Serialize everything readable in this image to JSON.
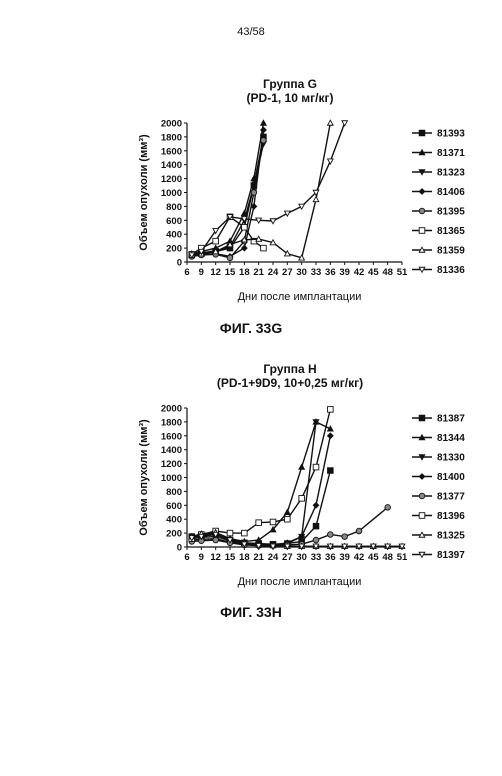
{
  "page": {
    "number": "43/58"
  },
  "figures": [
    {
      "caption": "ФИГ. 33G"
    },
    {
      "caption": "ФИГ. 33H"
    }
  ],
  "chart_data": [
    {
      "type": "line",
      "title": "Группа G",
      "subtitle": "(PD-1, 10 мг/кг)",
      "xlabel": "Дни после имплантации",
      "ylabel": "Объем опухоли (мм³)",
      "xlim": [
        6,
        51
      ],
      "ylim": [
        0,
        2000
      ],
      "x_ticks": [
        6,
        9,
        12,
        15,
        18,
        21,
        24,
        27,
        30,
        33,
        36,
        39,
        42,
        45,
        48,
        51
      ],
      "y_ticks": [
        0,
        200,
        400,
        600,
        800,
        1000,
        1200,
        1400,
        1600,
        1800,
        2000
      ],
      "legend_position": "right",
      "series": [
        {
          "name": "81393",
          "marker": "square-filled",
          "x": [
            7,
            9,
            12,
            15,
            18,
            20,
            22
          ],
          "y": [
            100,
            120,
            150,
            200,
            500,
            1100,
            1800
          ]
        },
        {
          "name": "81371",
          "marker": "triangle-up-filled",
          "x": [
            7,
            9,
            12,
            15,
            18,
            20,
            22
          ],
          "y": [
            120,
            150,
            200,
            300,
            700,
            1200,
            2000
          ]
        },
        {
          "name": "81323",
          "marker": "triangle-down-filled",
          "x": [
            7,
            9,
            12,
            15,
            18,
            20,
            22
          ],
          "y": [
            100,
            130,
            160,
            220,
            600,
            1100,
            1700
          ]
        },
        {
          "name": "81406",
          "marker": "diamond-filled",
          "x": [
            7,
            9,
            12,
            15,
            18,
            20,
            22
          ],
          "y": [
            90,
            110,
            120,
            80,
            200,
            800,
            1900
          ]
        },
        {
          "name": "81395",
          "marker": "circle-filled",
          "x": [
            7,
            9,
            12,
            15,
            18,
            20,
            22
          ],
          "y": [
            80,
            100,
            110,
            60,
            300,
            1000,
            1750
          ]
        },
        {
          "name": "81365",
          "marker": "square-open",
          "x": [
            7,
            9,
            12,
            15,
            18,
            20,
            22
          ],
          "y": [
            110,
            200,
            300,
            650,
            500,
            300,
            200
          ]
        },
        {
          "name": "81359",
          "marker": "triangle-up-open",
          "x": [
            7,
            9,
            12,
            15,
            18,
            21,
            24,
            27,
            30,
            33,
            36
          ],
          "y": [
            100,
            120,
            150,
            250,
            320,
            330,
            280,
            120,
            60,
            900,
            2000
          ]
        },
        {
          "name": "81336",
          "marker": "triangle-down-open",
          "x": [
            7,
            9,
            12,
            15,
            18,
            21,
            24,
            27,
            30,
            33,
            36,
            39
          ],
          "y": [
            100,
            150,
            450,
            650,
            620,
            600,
            590,
            700,
            800,
            1000,
            1450,
            2000
          ]
        }
      ]
    },
    {
      "type": "line",
      "title": "Группа H",
      "subtitle": "(PD-1+9D9, 10+0,25 мг/кг)",
      "xlabel": "Дни после имплантации",
      "ylabel": "Объем опухоли (мм³)",
      "xlim": [
        6,
        51
      ],
      "ylim": [
        0,
        2000
      ],
      "x_ticks": [
        6,
        9,
        12,
        15,
        18,
        21,
        24,
        27,
        30,
        33,
        36,
        39,
        42,
        45,
        48,
        51
      ],
      "y_ticks": [
        0,
        200,
        400,
        600,
        800,
        1000,
        1200,
        1400,
        1600,
        1800,
        2000
      ],
      "legend_position": "right",
      "series": [
        {
          "name": "81387",
          "marker": "square-filled",
          "x": [
            7,
            9,
            12,
            15,
            18,
            21,
            24,
            27,
            30,
            33,
            36
          ],
          "y": [
            150,
            160,
            180,
            100,
            60,
            50,
            40,
            50,
            80,
            300,
            1100
          ]
        },
        {
          "name": "81344",
          "marker": "triangle-up-filled",
          "x": [
            7,
            9,
            12,
            15,
            18,
            21,
            24,
            27,
            30,
            33,
            36
          ],
          "y": [
            150,
            170,
            200,
            120,
            80,
            100,
            250,
            500,
            1150,
            1800,
            1700
          ]
        },
        {
          "name": "81330",
          "marker": "triangle-down-filled",
          "x": [
            7,
            9,
            12,
            15,
            18,
            21,
            24,
            27,
            30,
            33
          ],
          "y": [
            120,
            140,
            150,
            90,
            50,
            30,
            30,
            50,
            150,
            1800
          ]
        },
        {
          "name": "81400",
          "marker": "diamond-filled",
          "x": [
            7,
            9,
            12,
            15,
            18,
            21,
            24,
            27,
            30,
            33,
            36
          ],
          "y": [
            100,
            110,
            120,
            70,
            40,
            30,
            30,
            60,
            150,
            600,
            1600
          ]
        },
        {
          "name": "81377",
          "marker": "circle-filled",
          "x": [
            7,
            9,
            12,
            15,
            18,
            21,
            24,
            27,
            30,
            33,
            36,
            39,
            42,
            48
          ],
          "y": [
            80,
            90,
            100,
            60,
            30,
            20,
            20,
            30,
            40,
            100,
            180,
            150,
            230,
            570
          ]
        },
        {
          "name": "81396",
          "marker": "square-open",
          "x": [
            7,
            9,
            12,
            15,
            18,
            21,
            24,
            27,
            30,
            33,
            36
          ],
          "y": [
            120,
            180,
            230,
            200,
            200,
            350,
            360,
            400,
            700,
            1150,
            1980
          ]
        },
        {
          "name": "81325",
          "marker": "triangle-up-open",
          "x": [
            7,
            9,
            12,
            15,
            18,
            21,
            24,
            27,
            30,
            33,
            36,
            39,
            42,
            45,
            48,
            51
          ],
          "y": [
            150,
            190,
            210,
            120,
            60,
            30,
            20,
            10,
            10,
            10,
            10,
            10,
            10,
            10,
            10,
            10
          ]
        },
        {
          "name": "81397",
          "marker": "triangle-down-open",
          "x": [
            7,
            9,
            12,
            15,
            18,
            21,
            24,
            27,
            30,
            33,
            36,
            39,
            42,
            45,
            48,
            51
          ],
          "y": [
            130,
            150,
            180,
            100,
            40,
            20,
            10,
            10,
            10,
            10,
            10,
            10,
            10,
            10,
            10,
            10
          ]
        }
      ]
    }
  ]
}
